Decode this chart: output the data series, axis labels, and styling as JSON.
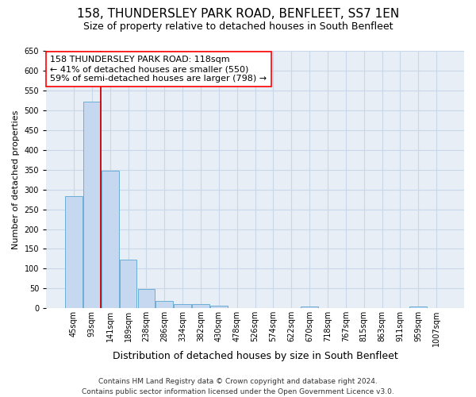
{
  "title": "158, THUNDERSLEY PARK ROAD, BENFLEET, SS7 1EN",
  "subtitle": "Size of property relative to detached houses in South Benfleet",
  "xlabel": "Distribution of detached houses by size in South Benfleet",
  "ylabel": "Number of detached properties",
  "footer_line1": "Contains HM Land Registry data © Crown copyright and database right 2024.",
  "footer_line2": "Contains public sector information licensed under the Open Government Licence v3.0.",
  "bin_labels": [
    "45sqm",
    "93sqm",
    "141sqm",
    "189sqm",
    "238sqm",
    "286sqm",
    "334sqm",
    "382sqm",
    "430sqm",
    "478sqm",
    "526sqm",
    "574sqm",
    "622sqm",
    "670sqm",
    "718sqm",
    "767sqm",
    "815sqm",
    "863sqm",
    "911sqm",
    "959sqm",
    "1007sqm"
  ],
  "bar_values": [
    283,
    522,
    347,
    123,
    48,
    18,
    11,
    10,
    7,
    0,
    0,
    0,
    0,
    5,
    0,
    0,
    0,
    0,
    0,
    5,
    0
  ],
  "bar_color": "#c5d8ef",
  "bar_edge_color": "#6baed6",
  "grid_color": "#c8d8ea",
  "bg_color": "#e8eef5",
  "annotation_line1": "158 THUNDERSLEY PARK ROAD: 118sqm",
  "annotation_line2": "← 41% of detached houses are smaller (550)",
  "annotation_line3": "59% of semi-detached houses are larger (798) →",
  "vline_color": "#cc0000",
  "vline_x": 1.475,
  "ylim": [
    0,
    650
  ],
  "yticks": [
    0,
    50,
    100,
    150,
    200,
    250,
    300,
    350,
    400,
    450,
    500,
    550,
    600,
    650
  ],
  "title_fontsize": 11,
  "subtitle_fontsize": 9,
  "ylabel_fontsize": 8,
  "xlabel_fontsize": 9,
  "tick_fontsize": 7,
  "footer_fontsize": 6.5,
  "annotation_fontsize": 8
}
